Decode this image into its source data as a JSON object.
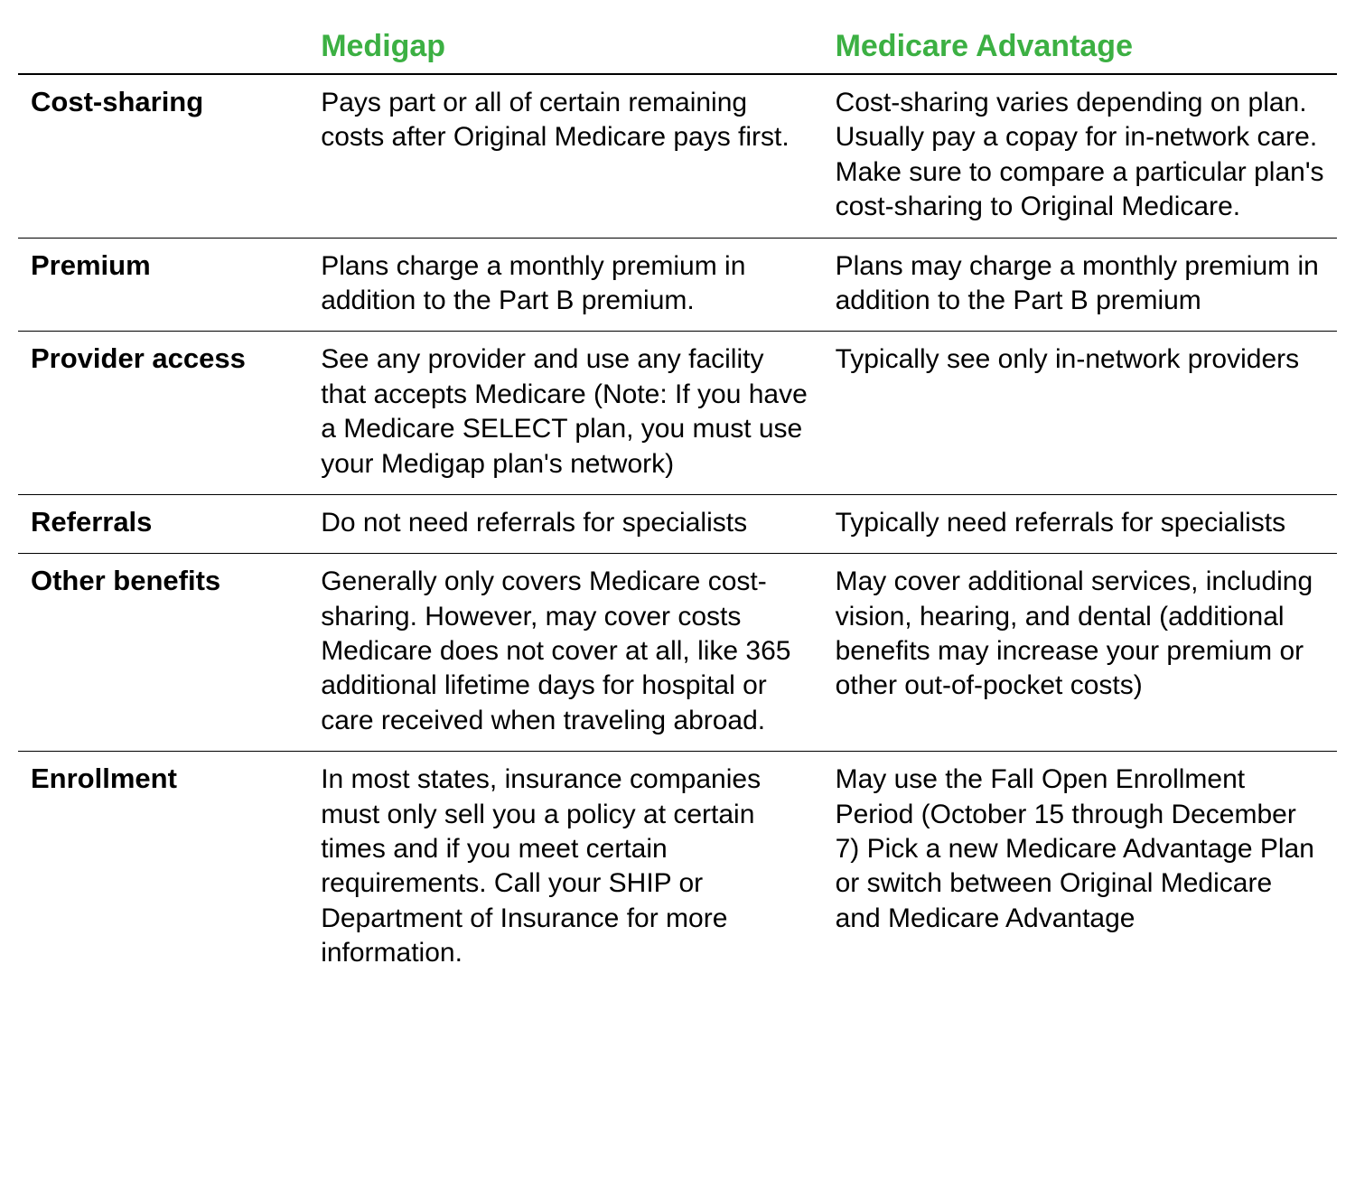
{
  "table": {
    "type": "table",
    "background_color": "#ffffff",
    "border_color": "#000000",
    "header": {
      "label_col": "",
      "plan_a": "Medigap",
      "plan_b": "Medicare Advantage",
      "plan_color": "#3cb043",
      "font_weight": "bold",
      "font_size_pt": 26
    },
    "columns": {
      "widths_pct": [
        22,
        39,
        39
      ],
      "alignment": [
        "left",
        "left",
        "left"
      ]
    },
    "label_style": {
      "font_weight": "bold",
      "font_size_pt": 23,
      "color": "#000000"
    },
    "cell_style": {
      "font_size_pt": 22,
      "color": "#000000",
      "line_height": 1.28
    },
    "rows": [
      {
        "label": "Cost-sharing",
        "plan_a": "Pays part or all of certain remaining costs after Original Medicare pays first.",
        "plan_b": "Cost-sharing varies depending on plan. Usually pay a copay for in-network care. Make sure to compare a particular plan's cost-sharing to Original Medicare."
      },
      {
        "label": "Premium",
        "plan_a": "Plans charge a monthly premium in addition to the Part B premium.",
        "plan_b": "Plans may charge a monthly premium in addition to the Part B premium"
      },
      {
        "label": "Provider access",
        "plan_a": "See any provider and use any facility that accepts Medicare (Note: If you have a Medicare SELECT plan, you must use your Medigap plan's network)",
        "plan_b": "Typically see only in-network providers"
      },
      {
        "label": "Referrals",
        "plan_a": "Do not need referrals for specialists",
        "plan_b": "Typically need referrals for specialists"
      },
      {
        "label": "Other benefits",
        "plan_a": "Generally only covers Medicare cost-sharing. However, may cover costs Medicare does not cover at all, like 365 additional lifetime days for hospital or care received when traveling abroad.",
        "plan_b": "May cover additional services, including vision, hearing, and dental (additional benefits may increase your premium or other out-of-pocket costs)"
      },
      {
        "label": "Enrollment",
        "plan_a": "In most states, insurance companies must only sell you a policy at certain times and if you meet certain requirements. Call your SHIP or Department of Insurance for more information.",
        "plan_b": "May use the Fall Open Enrollment Period (October 15 through December 7) Pick a new Medicare Advantage Plan or switch between Original Medicare and Medicare Advantage"
      }
    ]
  }
}
